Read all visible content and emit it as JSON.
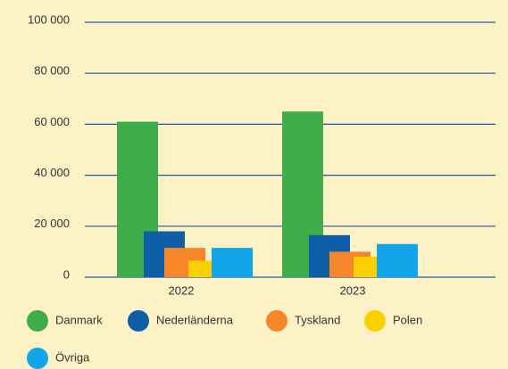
{
  "chart_data": {
    "type": "bar",
    "categories": [
      "2022",
      "2023"
    ],
    "series": [
      {
        "name": "Danmark",
        "color": "#3fad49",
        "values": [
          61000,
          65000
        ]
      },
      {
        "name": "Nederländerna",
        "color": "#0f5ea8",
        "values": [
          18000,
          16500
        ]
      },
      {
        "name": "Tyskland",
        "color": "#f5862a",
        "values": [
          11500,
          10000
        ]
      },
      {
        "name": "Polen",
        "color": "#fcd000",
        "values": [
          6500,
          8000
        ]
      },
      {
        "name": "Övriga",
        "color": "#12a5e8",
        "values": [
          11500,
          13000
        ]
      }
    ],
    "ylim": [
      0,
      100000
    ],
    "yticks": [
      0,
      {
        "value": 20000,
        "label": "20 000"
      },
      {
        "value": 40000,
        "label": "40 000"
      },
      {
        "value": 60000,
        "label": "60 000"
      },
      {
        "value": 80000,
        "label": "80 000"
      },
      {
        "value": 100000,
        "label": "100 000"
      }
    ],
    "grid": true
  }
}
